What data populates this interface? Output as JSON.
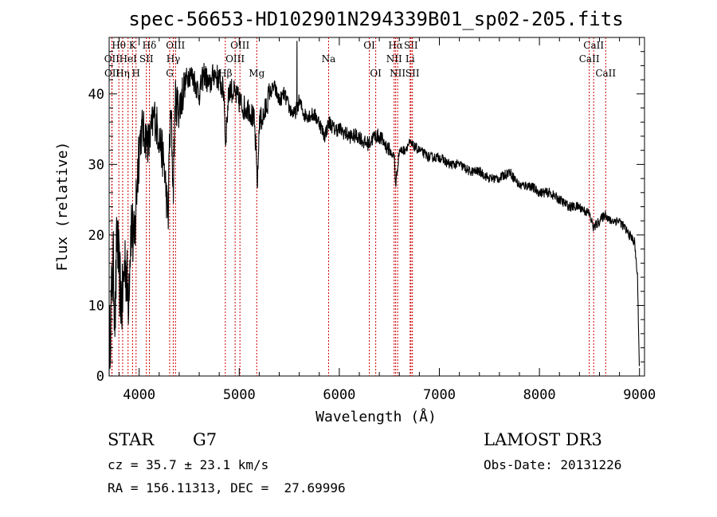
{
  "chart_data": {
    "type": "line",
    "title": "spec-56653-HD102901N294339B01_sp02-205.fits",
    "xlabel": "Wavelength (Å)",
    "ylabel": "Flux (relative)",
    "xlim": [
      3700,
      9050
    ],
    "ylim": [
      0,
      48
    ],
    "xticks": [
      4000,
      5000,
      6000,
      7000,
      8000,
      9000
    ],
    "yticks": [
      0,
      10,
      20,
      30,
      40
    ],
    "series": [
      {
        "name": "flux",
        "x": [
          3700,
          3720,
          3740,
          3760,
          3780,
          3800,
          3830,
          3860,
          3890,
          3920,
          3950,
          3980,
          4000,
          4030,
          4060,
          4100,
          4150,
          4200,
          4250,
          4290,
          4300,
          4320,
          4340,
          4360,
          4400,
          4450,
          4500,
          4550,
          4600,
          4650,
          4700,
          4750,
          4800,
          4850,
          4861,
          4900,
          4950,
          5000,
          5050,
          5100,
          5150,
          5170,
          5183,
          5200,
          5250,
          5300,
          5350,
          5400,
          5450,
          5500,
          5550,
          5600,
          5650,
          5700,
          5750,
          5800,
          5850,
          5900,
          5950,
          6000,
          6100,
          6200,
          6250,
          6300,
          6350,
          6400,
          6450,
          6500,
          6550,
          6563,
          6600,
          6650,
          6700,
          6800,
          6900,
          7000,
          7100,
          7200,
          7300,
          7400,
          7500,
          7600,
          7700,
          7800,
          7900,
          8000,
          8100,
          8200,
          8300,
          8400,
          8498,
          8542,
          8600,
          8662,
          8700,
          8800,
          8850,
          8900,
          8950,
          8980,
          9000
        ],
        "values": [
          3,
          10,
          16,
          8,
          21,
          14,
          10,
          17,
          11,
          22,
          18,
          28,
          33,
          35,
          34,
          33,
          37,
          34,
          30,
          22,
          32,
          37,
          26,
          39,
          38,
          41,
          43,
          42,
          40,
          43,
          41,
          43,
          42,
          40,
          33,
          41,
          40,
          39,
          38,
          38,
          36,
          31,
          27,
          36,
          37,
          40,
          41,
          39,
          40,
          38,
          37,
          39,
          37,
          37,
          37,
          36,
          34,
          36,
          35,
          35,
          34,
          34,
          33,
          33,
          34,
          34,
          33,
          32,
          31,
          27,
          32,
          32,
          33,
          32,
          31,
          31,
          30,
          30,
          29,
          29,
          28,
          28,
          29,
          27,
          27,
          26,
          26,
          25,
          24,
          24,
          23,
          21,
          22,
          23,
          22,
          22,
          21,
          20,
          19,
          14,
          0
        ]
      }
    ],
    "lines": [
      {
        "name": "Hθ",
        "x": 3797,
        "row": 0
      },
      {
        "name": "OII",
        "x": 3727,
        "row": 1
      },
      {
        "name": "OII",
        "x": 3729,
        "row": 2
      },
      {
        "name": "K",
        "x": 3934,
        "row": 0
      },
      {
        "name": "HeI",
        "x": 3889,
        "row": 1
      },
      {
        "name": "Hη",
        "x": 3835,
        "row": 2
      },
      {
        "name": "Hδ",
        "x": 4102,
        "row": 0
      },
      {
        "name": "SII",
        "x": 4072,
        "row": 1
      },
      {
        "name": "H",
        "x": 3969,
        "row": 2
      },
      {
        "name": "OIII",
        "x": 4363,
        "row": 0
      },
      {
        "name": "Hγ",
        "x": 4341,
        "row": 1
      },
      {
        "name": "G",
        "x": 4305,
        "row": 2
      },
      {
        "name": "OIII",
        "x": 5007,
        "row": 0
      },
      {
        "name": "OIII",
        "x": 4959,
        "row": 1
      },
      {
        "name": "Hβ",
        "x": 4861,
        "row": 2
      },
      {
        "name": "Mg",
        "x": 5175,
        "row": 2
      },
      {
        "name": "Na",
        "x": 5893,
        "row": 1
      },
      {
        "name": "OI",
        "x": 6300,
        "row": 0
      },
      {
        "name": "OI",
        "x": 6364,
        "row": 2
      },
      {
        "name": "Hα",
        "x": 6563,
        "row": 0
      },
      {
        "name": "NII",
        "x": 6548,
        "row": 1
      },
      {
        "name": "NII",
        "x": 6583,
        "row": 2
      },
      {
        "name": "SII",
        "x": 6716,
        "row": 0
      },
      {
        "name": "Li",
        "x": 6708,
        "row": 1
      },
      {
        "name": "SII",
        "x": 6731,
        "row": 2
      },
      {
        "name": "CaII",
        "x": 8542,
        "row": 0
      },
      {
        "name": "CaII",
        "x": 8498,
        "row": 1
      },
      {
        "name": "CaII",
        "x": 8662,
        "row": 2
      }
    ]
  },
  "info": {
    "object_class": "STAR",
    "subclass": "G7",
    "survey": "LAMOST DR3",
    "cz": "cz = 35.7 ± 23.1 km/s",
    "obs_date": "Obs-Date: 20131226",
    "coords": "RA = 156.11313, DEC =  27.69996"
  }
}
